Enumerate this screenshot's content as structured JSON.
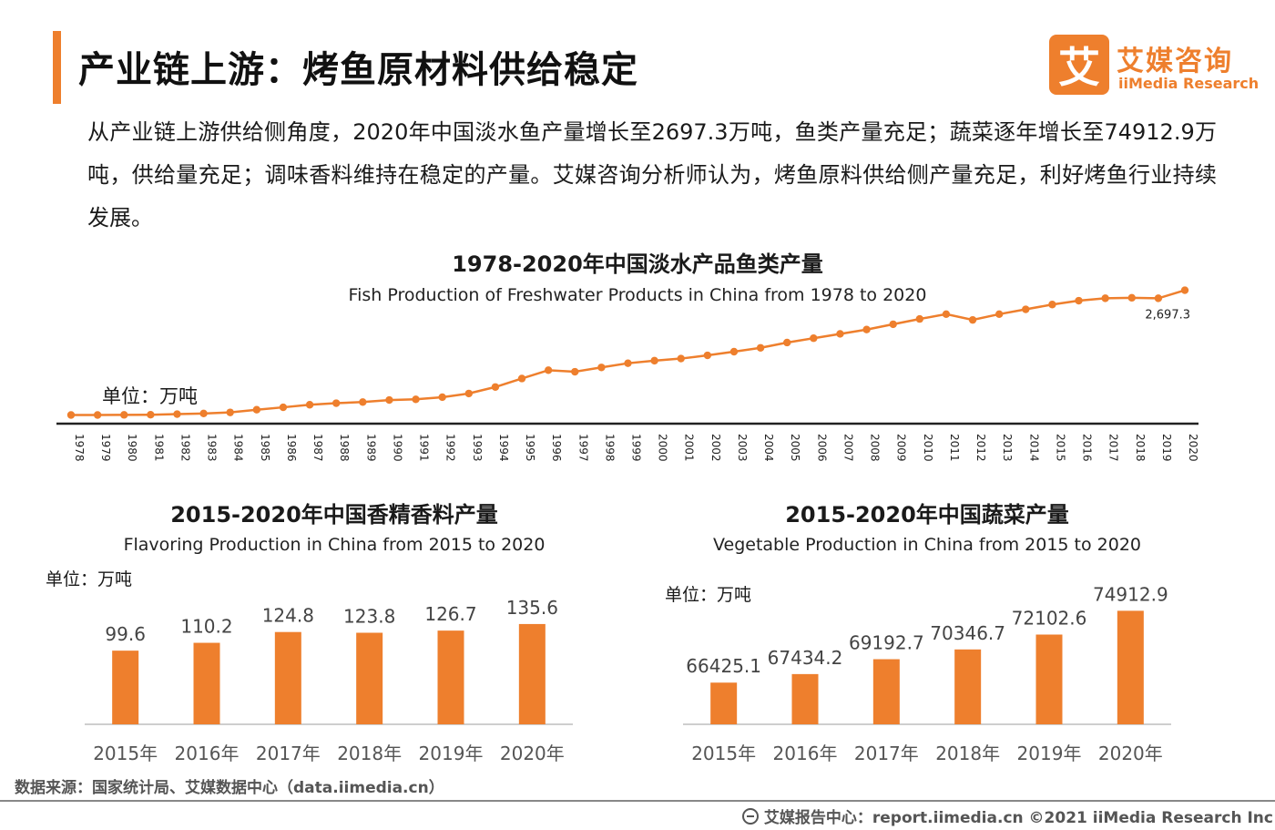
{
  "header": {
    "title": "产业链上游：烤鱼原材料供给稳定",
    "logo_mark": "艾",
    "logo_cn": "艾媒咨询",
    "logo_en": "iiMedia Research",
    "accent_color": "#ee7f2d"
  },
  "summary": "从产业链上游供给侧角度，2020年中国淡水鱼产量增长至2697.3万吨，鱼类产量充足；蔬菜逐年增长至74912.9万吨，供给量充足；调味香料维持在稳定的产量。艾媒咨询分析师认为，烤鱼原料供给侧产量充足，利好烤鱼行业持续发展。",
  "chart_data": [
    {
      "type": "line",
      "title": "1978-2020年中国淡水产品鱼类产量",
      "subtitle": "Fish Production of Freshwater Products in China from 1978 to 2020",
      "unit_label": "单位：万吨",
      "x": [
        "1978",
        "1979",
        "1980",
        "1981",
        "1982",
        "1983",
        "1984",
        "1985",
        "1986",
        "1987",
        "1988",
        "1989",
        "1990",
        "1991",
        "1992",
        "1993",
        "1994",
        "1995",
        "1996",
        "1997",
        "1998",
        "1999",
        "2000",
        "2001",
        "2002",
        "2003",
        "2004",
        "2005",
        "2006",
        "2007",
        "2008",
        "2009",
        "2010",
        "2011",
        "2012",
        "2013",
        "2014",
        "2015",
        "2016",
        "2017",
        "2018",
        "2019",
        "2020"
      ],
      "values": [
        104,
        104,
        107,
        110,
        122,
        136,
        158,
        214,
        264,
        317,
        350,
        373,
        415,
        430,
        474,
        551,
        686,
        862,
        1035,
        1003,
        1093,
        1180,
        1233,
        1277,
        1344,
        1420,
        1500,
        1610,
        1700,
        1790,
        1880,
        1990,
        2100,
        2200,
        2080,
        2200,
        2300,
        2400,
        2480,
        2530,
        2540,
        2530,
        2697.3
      ],
      "last_label": "2,697.3",
      "ylim": [
        0,
        3200
      ],
      "color": "#ee7f2d"
    },
    {
      "type": "bar",
      "title": "2015-2020年中国香精香料产量",
      "subtitle": "Flavoring Production in China from 2015 to 2020",
      "unit_label": "单位：万吨",
      "categories": [
        "2015年",
        "2016年",
        "2017年",
        "2018年",
        "2019年",
        "2020年"
      ],
      "values": [
        99.6,
        110.2,
        124.8,
        123.8,
        126.7,
        135.6
      ],
      "labels": [
        "99.6",
        "110.2",
        "124.8",
        "123.8",
        "126.7",
        "135.6"
      ],
      "ylim": [
        0,
        170
      ],
      "color": "#ee7f2d"
    },
    {
      "type": "bar",
      "title": "2015-2020年中国蔬菜产量",
      "subtitle": "Vegetable Production in China from 2015 to 2020",
      "unit_label": "单位：万吨",
      "categories": [
        "2015年",
        "2016年",
        "2017年",
        "2018年",
        "2019年",
        "2020年"
      ],
      "values": [
        66425.1,
        67434.2,
        69192.7,
        70346.7,
        72102.6,
        74912.9
      ],
      "labels": [
        "66425.1",
        "67434.2",
        "69192.7",
        "70346.7",
        "72102.6",
        "74912.9"
      ],
      "ylim": [
        61500,
        77000
      ],
      "color": "#ee7f2d"
    }
  ],
  "footer": {
    "source": "数据来源：国家统计局、艾媒数据中心（data.iimedia.cn）",
    "report": "艾媒报告中心：report.iimedia.cn  ©2021  iiMedia Research  Inc"
  }
}
